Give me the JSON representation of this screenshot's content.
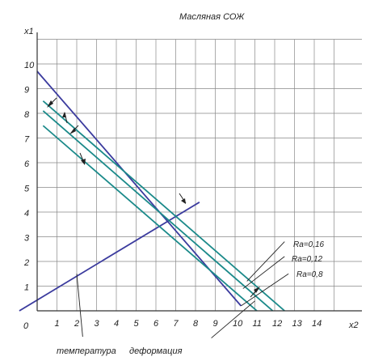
{
  "chart_data": {
    "type": "line",
    "title": "Масляная СОЖ",
    "xlabel": "x2",
    "ylabel": "x1",
    "origin_label": "0",
    "xlim": [
      0,
      15.7
    ],
    "ylim": [
      0,
      11.7
    ],
    "x_ticks": [
      "1",
      "2",
      "3",
      "4",
      "5",
      "6",
      "7",
      "8",
      "9",
      "10",
      "11",
      "12",
      "13",
      "14"
    ],
    "y_ticks": [
      "1",
      "2",
      "3",
      "4",
      "5",
      "6",
      "7",
      "8",
      "9",
      "10"
    ],
    "grid": true,
    "colors": {
      "navy": "#3b3b9e",
      "teal": "#1b8a8a",
      "grid": "#888888",
      "axis": "#333333"
    },
    "series": [
      {
        "x": [
          -0.9,
          8.2
        ],
        "y": [
          0,
          4.4
        ],
        "color": "#3b3b9e"
      },
      {
        "x": [
          0,
          10.3
        ],
        "y": [
          9.7,
          0.2
        ],
        "color": "#3b3b9e"
      },
      {
        "x": [
          0.3,
          12.5
        ],
        "y": [
          8.5,
          0.0
        ],
        "color": "#1b8a8a"
      },
      {
        "x": [
          0.3,
          11.9
        ],
        "y": [
          8.1,
          0.0
        ],
        "color": "#1b8a8a"
      },
      {
        "x": [
          0.3,
          11.1
        ],
        "y": [
          7.5,
          0.0
        ],
        "color": "#1b8a8a"
      }
    ],
    "labels": [
      {
        "text": "Ra=0,16",
        "x": 12.7,
        "y": 2.9
      },
      {
        "text": "Ra=0,12",
        "x": 12.6,
        "y": 2.3
      },
      {
        "text": "Ra=0,8",
        "x": 12.8,
        "y": 1.6
      }
    ],
    "annotations": [
      {
        "text": "температура",
        "x": 0.9,
        "y": -1.5
      },
      {
        "text": "деформация",
        "x": 5.1,
        "y": -1.5
      }
    ],
    "pointer_lines": [
      {
        "from": [
          12.5,
          2.8
        ],
        "to": [
          10.6,
          1.2
        ]
      },
      {
        "from": [
          12.5,
          2.2
        ],
        "to": [
          10.4,
          0.9
        ]
      },
      {
        "from": [
          12.7,
          1.5
        ],
        "to": [
          10.3,
          0.2
        ]
      },
      {
        "from": [
          2.3,
          -1.05
        ],
        "to": [
          2.0,
          1.5
        ]
      },
      {
        "from": [
          8.8,
          -1.1
        ],
        "to": [
          11.0,
          0.4
        ]
      }
    ]
  }
}
